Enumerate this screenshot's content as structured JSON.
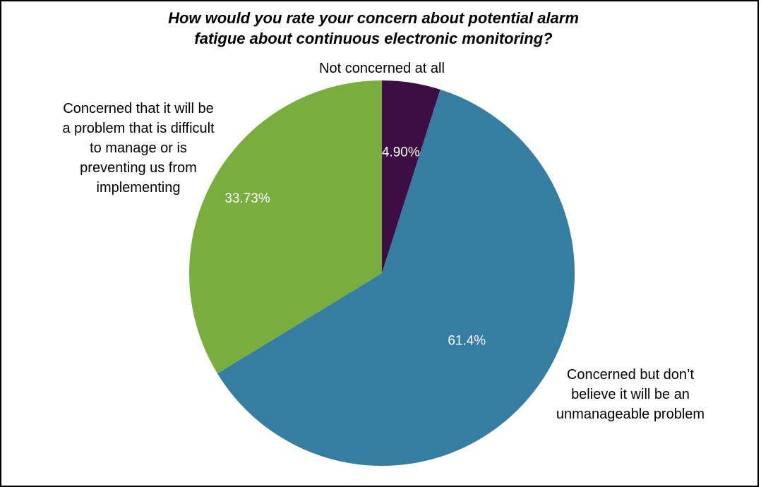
{
  "chart_data": {
    "type": "pie",
    "title": "How would you rate your concern about potential alarm fatigue about continuous electronic monitoring?",
    "title_lines": [
      "How would you rate your concern about potential alarm",
      "fatigue about continuous electronic monitoring?"
    ],
    "categories": [
      "Not concerned at all",
      "Concerned but don’t believe it will be an unmanageable problem",
      "Concerned that it will be a problem that is difficult to manage or is preventing us from implementing"
    ],
    "values": [
      4.9,
      61.4,
      33.73
    ],
    "value_labels": [
      "4.90%",
      "61.4%",
      "33.73%"
    ],
    "colors": [
      "#3d0e44",
      "#357ea1",
      "#79ad3e"
    ],
    "category_label_lines": [
      [
        "Not concerned at all"
      ],
      [
        "Concerned but don’t",
        "believe it will be an",
        "unmanageable problem"
      ],
      [
        "Concerned that it will be",
        "a problem that is difficult",
        "to manage or is",
        "preventing us from",
        "implementing"
      ]
    ],
    "start_angle": "12 o'clock",
    "direction": "clockwise",
    "legend": "none (direct labels)"
  }
}
